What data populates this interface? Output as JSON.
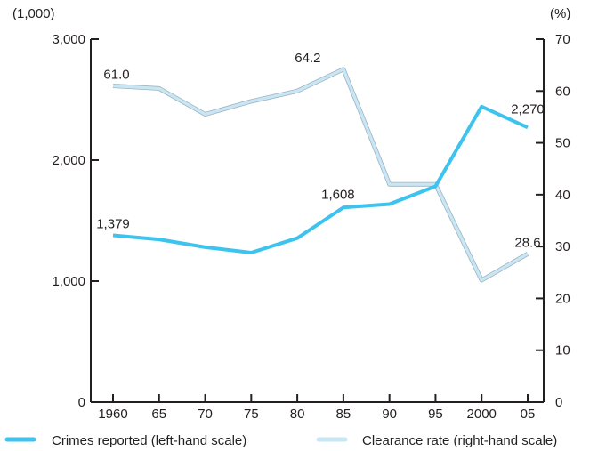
{
  "chart_data": {
    "type": "line",
    "x": [
      1960,
      1965,
      1970,
      1975,
      1980,
      1985,
      1990,
      1995,
      2000,
      2005
    ],
    "x_tick_labels": [
      "1960",
      "65",
      "70",
      "75",
      "80",
      "85",
      "90",
      "95",
      "2000",
      "05"
    ],
    "left_axis": {
      "unit": "(1,000)",
      "ylim": [
        0,
        3000
      ],
      "ticks": [
        0,
        1000,
        2000,
        3000
      ],
      "tick_labels": [
        "0",
        "1,000",
        "2,000",
        "3,000"
      ]
    },
    "right_axis": {
      "unit": "(%)",
      "ylim": [
        0,
        70
      ],
      "ticks": [
        0,
        10,
        20,
        30,
        40,
        50,
        60,
        70
      ],
      "tick_labels": [
        "0",
        "10",
        "20",
        "30",
        "40",
        "50",
        "60",
        "70"
      ]
    },
    "series": [
      {
        "name": "Crimes reported (left-hand scale)",
        "axis": "left",
        "color": "#3cc3ee",
        "values": [
          1379,
          1345,
          1280,
          1235,
          1355,
          1608,
          1636,
          1783,
          2443,
          2270
        ],
        "labels": [
          {
            "index": 0,
            "text": "1,379"
          },
          {
            "index": 5,
            "text": "1,608"
          },
          {
            "index": 9,
            "text": "2,270"
          }
        ]
      },
      {
        "name": "Clearance rate (right-hand scale)",
        "axis": "right",
        "color": "#c9e6f5",
        "values": [
          61.0,
          60.5,
          55.5,
          58.0,
          60.0,
          64.2,
          42.0,
          42.0,
          23.5,
          28.6
        ],
        "labels": [
          {
            "index": 0,
            "text": "61.0"
          },
          {
            "index": 5,
            "text": "64.2"
          },
          {
            "index": 9,
            "text": "28.6"
          }
        ]
      }
    ],
    "legend_placement": "bottom",
    "grid": false
  }
}
